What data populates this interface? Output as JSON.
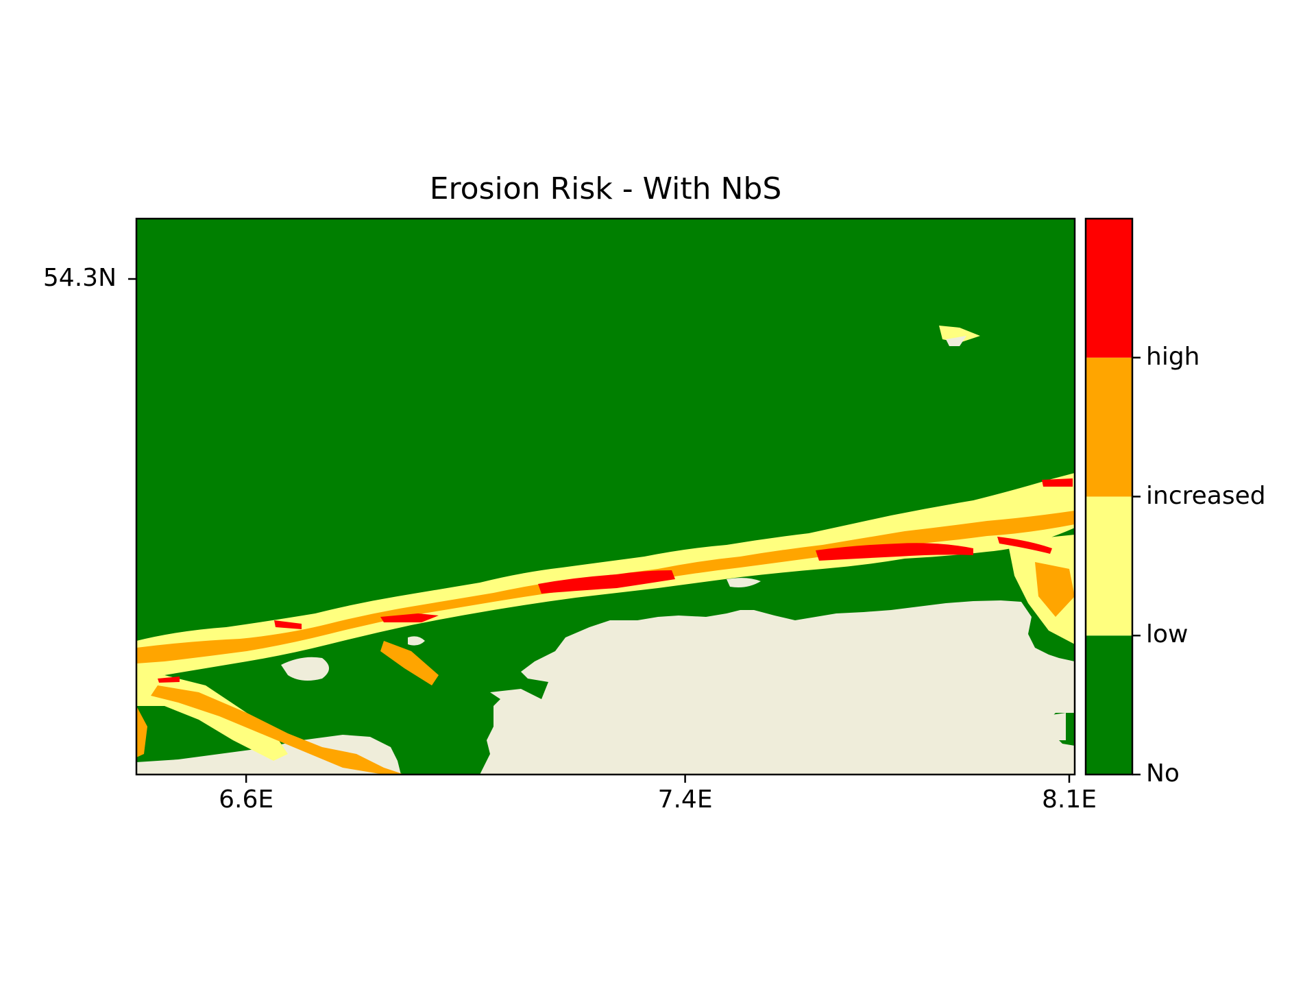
{
  "figure": {
    "title": "Erosion Risk - With NbS"
  },
  "map": {
    "x_ticks": [
      {
        "label": "6.6E",
        "lon": 6.6
      },
      {
        "label": "7.4E",
        "lon": 7.4
      },
      {
        "label": "8.1E",
        "lon": 8.1
      }
    ],
    "y_ticks": [
      {
        "label": "54.3N",
        "lat": 54.3
      }
    ],
    "extent": {
      "lon_min": 6.4,
      "lon_max": 8.11
    },
    "colors": {
      "sea_no_risk": "#007f00",
      "land": "#efedda",
      "low": "#ffff7f",
      "increased": "#ffa500",
      "high": "#ff0000"
    }
  },
  "colorbar": {
    "levels": [
      {
        "label": "No",
        "color": "#007f00"
      },
      {
        "label": "low",
        "color": "#ffff7f"
      },
      {
        "label": "increased",
        "color": "#ffa500"
      },
      {
        "label": "high",
        "color": "#ff0000"
      }
    ],
    "tick_labels": [
      "No",
      "low",
      "increased",
      "high"
    ]
  }
}
